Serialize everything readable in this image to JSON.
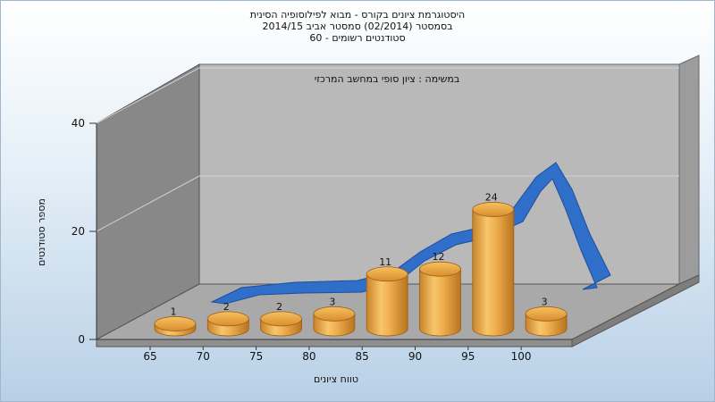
{
  "titles": {
    "line1": "היסטוגרמת ציונים בקורס - מבוא לפילוסופיה הסינית",
    "line2": "בסמסטר  (02/2014)  סמסטר אביב 2014/15",
    "line3": "סטודנטים רשומים - 60"
  },
  "chart_data": {
    "type": "bar",
    "title": "היסטוגרמת ציונים בקורס - מבוא לפילוסופיה הסינית",
    "subtitle": "במשימה : ציון סופי במחשב המרכזי",
    "xlabel": "טווח ציונים",
    "ylabel": "מספר סטודנטים",
    "x_ticks": [
      "65",
      "70",
      "75",
      "80",
      "85",
      "90",
      "95",
      "100"
    ],
    "y_ticks": [
      "0",
      "20",
      "40"
    ],
    "ylim": [
      0,
      40
    ],
    "grid": true,
    "categories": [
      "65",
      "70",
      "75",
      "80",
      "85",
      "90",
      "95",
      "100"
    ],
    "values": [
      1,
      2,
      2,
      3,
      11,
      12,
      24,
      3
    ],
    "curve": "normal-distribution-overlay",
    "colors": {
      "bar": "#e8a33c",
      "curve": "#2f6fca",
      "back_wall": "#b8b8b8",
      "side_wall": "#8a8a8a",
      "floor": "#a8a8a8"
    }
  }
}
